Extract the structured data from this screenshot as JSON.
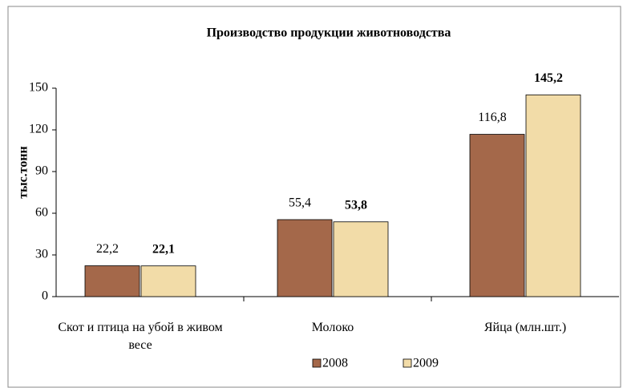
{
  "chart_data": {
    "type": "bar",
    "title": "Производство продукции животноводства",
    "y_label": "тыс.тонн",
    "categories": [
      "Скот и птица на убой в живом весе",
      "Молоко",
      "Яйца (млн.шт.)"
    ],
    "series": [
      {
        "name": "2008",
        "color": "#a4684a",
        "values": [
          22.2,
          55.4,
          116.8
        ],
        "value_labels": [
          "22,2",
          "55,4",
          "116,8"
        ]
      },
      {
        "name": "2009",
        "color": "#f2dca8",
        "values": [
          22.1,
          53.8,
          145.2
        ],
        "value_labels": [
          "22,1",
          "53,8",
          "145,2"
        ]
      }
    ],
    "ylim": [
      0,
      150
    ],
    "yticks": [
      0,
      30,
      60,
      90,
      120,
      150
    ],
    "grid": false,
    "legend": "bottom"
  }
}
